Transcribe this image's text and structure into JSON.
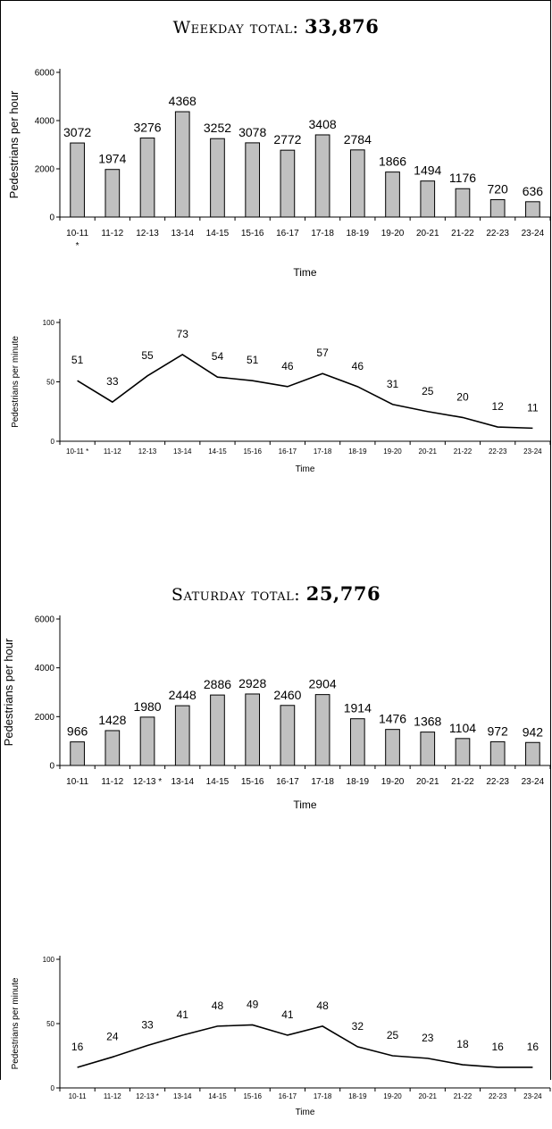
{
  "sections": [
    {
      "title_label": "Weekday total:",
      "title_value": "33,876"
    },
    {
      "title_label": "Saturday total:",
      "title_value": "25,776"
    }
  ],
  "chart_data": [
    {
      "type": "bar",
      "categories": [
        "10-11",
        "11-12",
        "12-13",
        "13-14",
        "14-15",
        "15-16",
        "16-17",
        "17-18",
        "18-19",
        "19-20",
        "20-21",
        "21-22",
        "22-23",
        "23-24"
      ],
      "category_notes": [
        "*",
        "",
        "",
        "",
        "",
        "",
        "",
        "",
        "",
        "",
        "",
        "",
        "",
        ""
      ],
      "values": [
        3072,
        1974,
        3276,
        4368,
        3252,
        3078,
        2772,
        3408,
        2784,
        1866,
        1494,
        1176,
        720,
        636
      ],
      "xlabel": "Time",
      "ylabel": "Pedestrians per hour",
      "ylim": [
        0,
        6000
      ],
      "yticks": [
        0,
        2000,
        4000,
        6000
      ],
      "bar_color": "#c0c0c0"
    },
    {
      "type": "line",
      "categories": [
        "10-11 *",
        "11-12",
        "12-13",
        "13-14",
        "14-15",
        "15-16",
        "16-17",
        "17-18",
        "18-19",
        "19-20",
        "20-21",
        "21-22",
        "22-23",
        "23-24"
      ],
      "values": [
        51,
        33,
        55,
        73,
        54,
        51,
        46,
        57,
        46,
        31,
        25,
        20,
        12,
        11
      ],
      "xlabel": "Time",
      "ylabel": "Pedestrians per minute",
      "ylim": [
        0,
        100
      ],
      "yticks": [
        0,
        50,
        100
      ]
    },
    {
      "type": "bar",
      "categories": [
        "10-11",
        "11-12",
        "12-13 *",
        "13-14",
        "14-15",
        "15-16",
        "16-17",
        "17-18",
        "18-19",
        "19-20",
        "20-21",
        "21-22",
        "22-23",
        "23-24"
      ],
      "values": [
        966,
        1428,
        1980,
        2448,
        2886,
        2928,
        2460,
        2904,
        1914,
        1476,
        1368,
        1104,
        972,
        942
      ],
      "xlabel": "Time",
      "ylabel": "Pedestrians per hour",
      "ylim": [
        0,
        6000
      ],
      "yticks": [
        0,
        2000,
        4000,
        6000
      ],
      "bar_color": "#c0c0c0"
    },
    {
      "type": "line",
      "categories": [
        "10-11",
        "11-12",
        "12-13 *",
        "13-14",
        "14-15",
        "15-16",
        "16-17",
        "17-18",
        "18-19",
        "19-20",
        "20-21",
        "21-22",
        "22-23",
        "23-24"
      ],
      "values": [
        16,
        24,
        33,
        41,
        48,
        49,
        41,
        48,
        32,
        25,
        23,
        18,
        16,
        16
      ],
      "xlabel": "Time",
      "ylabel": "Pedestrians per minute",
      "ylim": [
        0,
        100
      ],
      "yticks": [
        0,
        50,
        100
      ]
    }
  ]
}
